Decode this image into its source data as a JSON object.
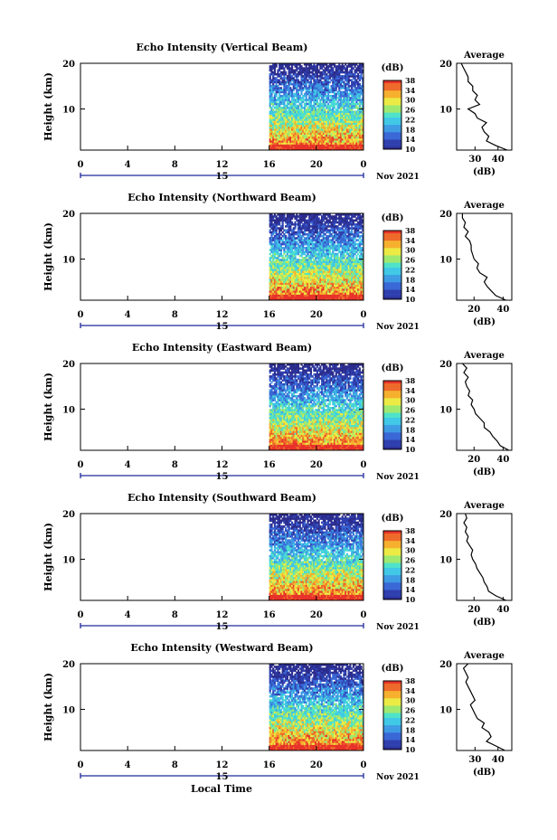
{
  "footer_label": "Local Time",
  "colors": {
    "scale": [
      "#2c2c8c",
      "#2f3fae",
      "#3a68d6",
      "#3e9be3",
      "#40c8e6",
      "#4fe2c9",
      "#9ee970",
      "#ecea44",
      "#f6b02e",
      "#ee6a2a",
      "#e8332a"
    ]
  },
  "chart_data": [
    {
      "type": "heatmap",
      "title": "Echo Intensity (Vertical Beam)",
      "ylabel": "Height (km)",
      "ylim": [
        1,
        20
      ],
      "yticks": [
        "20",
        "10"
      ],
      "xticks": [
        "0",
        "4",
        "8",
        "12",
        "16",
        "20",
        "0"
      ],
      "xlim": [
        0,
        24
      ],
      "date_axis": {
        "label": "15",
        "month_label": "Nov 2021"
      },
      "data_start_hour": 16,
      "colorbar": {
        "title": "(dB)",
        "ticks": [
          "38",
          "34",
          "30",
          "26",
          "22",
          "18",
          "14",
          "10"
        ],
        "range": [
          10,
          38
        ]
      },
      "profile": {
        "title": "Average",
        "xlabel": "(dB)",
        "xticks": [
          "30",
          "40"
        ],
        "xlim": [
          22,
          46
        ],
        "height_km": [
          1,
          2,
          3,
          4,
          5,
          6,
          7,
          8,
          9,
          10,
          11,
          12,
          13,
          14,
          15,
          16,
          17,
          18,
          19,
          20
        ],
        "values": [
          44,
          39,
          35,
          36,
          34,
          33,
          35,
          31,
          30,
          27,
          32,
          30,
          31,
          29,
          29,
          27,
          27,
          26,
          25,
          24
        ]
      }
    },
    {
      "type": "heatmap",
      "title": "Echo Intensity (Northward Beam)",
      "ylabel": "Height (km)",
      "ylim": [
        1,
        20
      ],
      "yticks": [
        "20",
        "10"
      ],
      "xticks": [
        "0",
        "4",
        "8",
        "12",
        "16",
        "20",
        "0"
      ],
      "xlim": [
        0,
        24
      ],
      "date_axis": {
        "label": "15",
        "month_label": "Nov 2021"
      },
      "data_start_hour": 16,
      "colorbar": {
        "title": "(dB)",
        "ticks": [
          "38",
          "34",
          "30",
          "26",
          "22",
          "18",
          "14",
          "10"
        ],
        "range": [
          10,
          38
        ]
      },
      "profile": {
        "title": "Average",
        "xlabel": "(dB)",
        "xticks": [
          "20",
          "40"
        ],
        "xlim": [
          8,
          46
        ],
        "height_km": [
          1,
          2,
          3,
          4,
          5,
          6,
          7,
          8,
          9,
          10,
          11,
          12,
          13,
          14,
          15,
          16,
          17,
          18,
          19,
          20
        ],
        "values": [
          42,
          35,
          32,
          29,
          27,
          29,
          24,
          22,
          23,
          20,
          19,
          18,
          18,
          17,
          14,
          16,
          13,
          14,
          12,
          12
        ]
      }
    },
    {
      "type": "heatmap",
      "title": "Echo Intensity (Eastward Beam)",
      "ylabel": "Height (km)",
      "ylim": [
        1,
        20
      ],
      "yticks": [
        "20",
        "10"
      ],
      "xticks": [
        "0",
        "4",
        "8",
        "12",
        "16",
        "20",
        "0"
      ],
      "xlim": [
        0,
        24
      ],
      "date_axis": {
        "label": "15",
        "month_label": "Nov 2021"
      },
      "data_start_hour": 16,
      "colorbar": {
        "title": "(dB)",
        "ticks": [
          "38",
          "34",
          "30",
          "26",
          "22",
          "18",
          "14",
          "10"
        ],
        "range": [
          10,
          38
        ]
      },
      "profile": {
        "title": "Average",
        "xlabel": "(dB)",
        "xticks": [
          "20",
          "40"
        ],
        "xlim": [
          8,
          46
        ],
        "height_km": [
          1,
          2,
          3,
          4,
          5,
          6,
          7,
          8,
          9,
          10,
          11,
          12,
          13,
          14,
          15,
          16,
          17,
          18,
          19,
          20
        ],
        "values": [
          44,
          38,
          36,
          33,
          31,
          27,
          27,
          24,
          21,
          20,
          18,
          19,
          16,
          17,
          15,
          14,
          16,
          13,
          15,
          12
        ]
      }
    },
    {
      "type": "heatmap",
      "title": "Echo Intensity (Southward Beam)",
      "ylabel": "Height (km)",
      "ylim": [
        1,
        20
      ],
      "yticks": [
        "20",
        "10"
      ],
      "xticks": [
        "0",
        "4",
        "8",
        "12",
        "16",
        "20",
        "0"
      ],
      "xlim": [
        0,
        24
      ],
      "date_axis": {
        "label": "15",
        "month_label": "Nov 2021"
      },
      "data_start_hour": 16,
      "colorbar": {
        "title": "(dB)",
        "ticks": [
          "38",
          "34",
          "30",
          "26",
          "22",
          "18",
          "14",
          "10"
        ],
        "range": [
          10,
          38
        ]
      },
      "profile": {
        "title": "Average",
        "xlabel": "(dB)",
        "xticks": [
          "20",
          "40"
        ],
        "xlim": [
          8,
          46
        ],
        "height_km": [
          1,
          2,
          3,
          4,
          5,
          6,
          7,
          8,
          9,
          10,
          11,
          12,
          13,
          14,
          15,
          16,
          17,
          18,
          19,
          20
        ],
        "values": [
          42,
          35,
          30,
          29,
          27,
          26,
          24,
          22,
          21,
          19,
          18,
          19,
          17,
          15,
          16,
          14,
          15,
          13,
          15,
          14
        ]
      }
    },
    {
      "type": "heatmap",
      "title": "Echo Intensity (Westward Beam)",
      "ylabel": "Height (km)",
      "ylim": [
        1,
        20
      ],
      "yticks": [
        "20",
        "10"
      ],
      "xticks": [
        "0",
        "4",
        "8",
        "12",
        "16",
        "20",
        "0"
      ],
      "xlim": [
        0,
        24
      ],
      "date_axis": {
        "label": "15",
        "month_label": "Nov 2021"
      },
      "data_start_hour": 16,
      "colorbar": {
        "title": "(dB)",
        "ticks": [
          "38",
          "34",
          "30",
          "26",
          "22",
          "18",
          "14",
          "10"
        ],
        "range": [
          10,
          38
        ]
      },
      "profile": {
        "title": "Average",
        "xlabel": "(dB)",
        "xticks": [
          "30",
          "40"
        ],
        "xlim": [
          22,
          46
        ],
        "height_km": [
          1,
          2,
          3,
          4,
          5,
          6,
          7,
          8,
          9,
          10,
          11,
          12,
          13,
          14,
          15,
          16,
          17,
          18,
          19,
          20
        ],
        "values": [
          43,
          39,
          35,
          37,
          36,
          33,
          34,
          31,
          30,
          29,
          28,
          30,
          29,
          28,
          27,
          26,
          27,
          26,
          25,
          27
        ]
      }
    }
  ]
}
